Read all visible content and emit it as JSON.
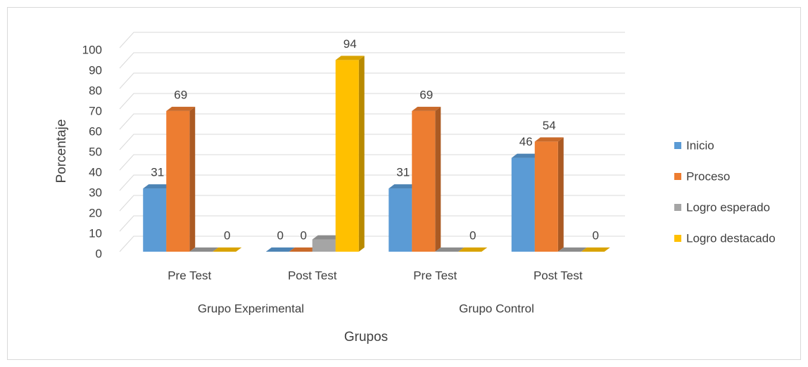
{
  "chart_data": {
    "type": "bar3d",
    "y_label": "Porcentaje",
    "x_label": "Grupos",
    "categories": [
      "Pre Test",
      "Post Test",
      "Pre Test",
      "Post Test"
    ],
    "groups": [
      "Grupo Experimental",
      "Grupo Control"
    ],
    "series": [
      {
        "name": "Inicio",
        "color": "#5b9bd5",
        "values": [
          31,
          0,
          31,
          46
        ],
        "data_labels": true
      },
      {
        "name": "Proceso",
        "color": "#ed7d31",
        "values": [
          69,
          0,
          69,
          54
        ],
        "data_labels": true
      },
      {
        "name": "Logro esperado",
        "color": "#a5a5a5",
        "values": [
          0,
          6,
          0,
          0
        ],
        "data_labels": false
      },
      {
        "name": "Logro destacado",
        "color": "#ffc000",
        "values": [
          0,
          94,
          0,
          0
        ],
        "data_labels": true
      }
    ],
    "ylim": [
      0,
      100
    ],
    "yticks": [
      0,
      10,
      20,
      30,
      40,
      50,
      60,
      70,
      80,
      90,
      100
    ],
    "grid": true,
    "legend": "right"
  }
}
